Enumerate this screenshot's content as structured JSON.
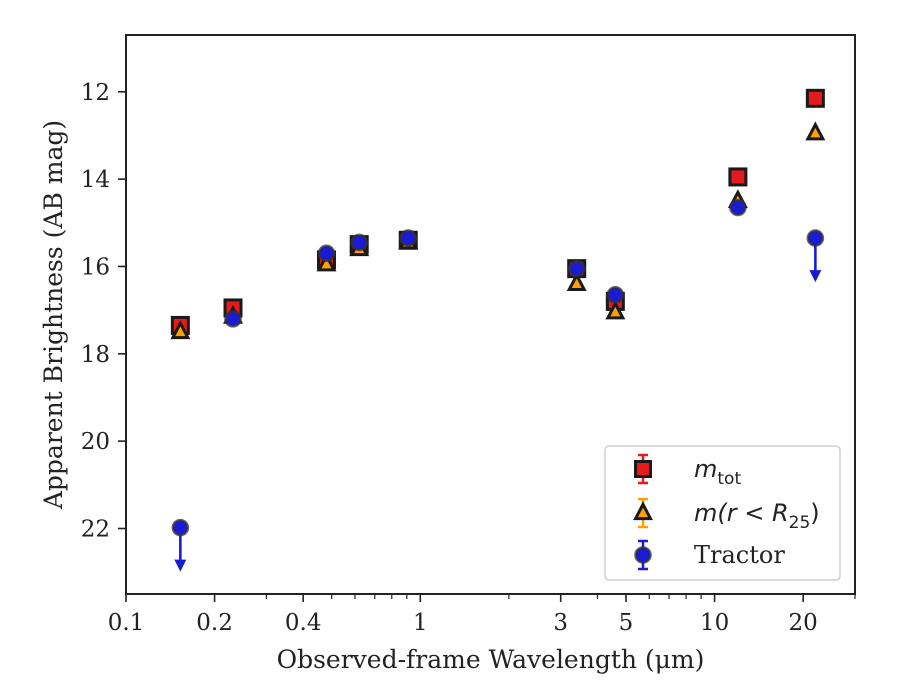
{
  "chart_data": {
    "type": "scatter",
    "xscale": "log",
    "xlim": [
      0.1,
      30
    ],
    "ylim": [
      23.5,
      10.7
    ],
    "y_inverted": true,
    "xlabel": "Observed-frame Wavelength (μm)",
    "ylabel": "Apparent Brightness (AB mag)",
    "xticks": [
      {
        "value": 0.1,
        "label": "0.1"
      },
      {
        "value": 0.2,
        "label": "0.2"
      },
      {
        "value": 0.4,
        "label": "0.4"
      },
      {
        "value": 1,
        "label": "1"
      },
      {
        "value": 3,
        "label": "3"
      },
      {
        "value": 5,
        "label": "5"
      },
      {
        "value": 10,
        "label": "10"
      },
      {
        "value": 20,
        "label": "20"
      }
    ],
    "yticks": [
      {
        "value": 12,
        "label": "12"
      },
      {
        "value": 14,
        "label": "14"
      },
      {
        "value": 16,
        "label": "16"
      },
      {
        "value": 18,
        "label": "18"
      },
      {
        "value": 20,
        "label": "20"
      },
      {
        "value": 22,
        "label": "22"
      }
    ],
    "legend_position": "lower-right",
    "series": [
      {
        "name": "m_tot",
        "legend_label": "m",
        "legend_sub": "tot",
        "marker": "square",
        "color": "#e41a1c",
        "points": [
          {
            "x": 0.153,
            "y": 17.35
          },
          {
            "x": 0.231,
            "y": 16.95
          },
          {
            "x": 0.48,
            "y": 15.85
          },
          {
            "x": 0.62,
            "y": 15.5
          },
          {
            "x": 0.91,
            "y": 15.4
          },
          {
            "x": 3.4,
            "y": 16.05
          },
          {
            "x": 4.6,
            "y": 16.8
          },
          {
            "x": 12.0,
            "y": 13.95
          },
          {
            "x": 22.0,
            "y": 12.15
          }
        ]
      },
      {
        "name": "m(r < R25)",
        "legend_label": "m(r < R",
        "legend_sub": "25",
        "legend_tail": ")",
        "marker": "triangle",
        "color": "#ff9f00",
        "points": [
          {
            "x": 0.153,
            "y": 17.5
          },
          {
            "x": 0.231,
            "y": 17.15
          },
          {
            "x": 0.48,
            "y": 15.95
          },
          {
            "x": 0.62,
            "y": 15.6
          },
          {
            "x": 0.91,
            "y": 15.45
          },
          {
            "x": 3.4,
            "y": 16.4
          },
          {
            "x": 4.6,
            "y": 17.05
          },
          {
            "x": 12.0,
            "y": 14.5
          },
          {
            "x": 22.0,
            "y": 12.95
          }
        ]
      },
      {
        "name": "Tractor",
        "legend_label": "Tractor",
        "marker": "circle",
        "color": "#1b1bd6",
        "points": [
          {
            "x": 0.153,
            "y": 21.98,
            "upper_limit": true
          },
          {
            "x": 0.231,
            "y": 17.2
          },
          {
            "x": 0.48,
            "y": 15.7
          },
          {
            "x": 0.62,
            "y": 15.45
          },
          {
            "x": 0.91,
            "y": 15.35
          },
          {
            "x": 3.4,
            "y": 16.05
          },
          {
            "x": 4.6,
            "y": 16.65
          },
          {
            "x": 12.0,
            "y": 14.65
          },
          {
            "x": 22.0,
            "y": 15.35,
            "upper_limit": true
          }
        ]
      }
    ]
  }
}
